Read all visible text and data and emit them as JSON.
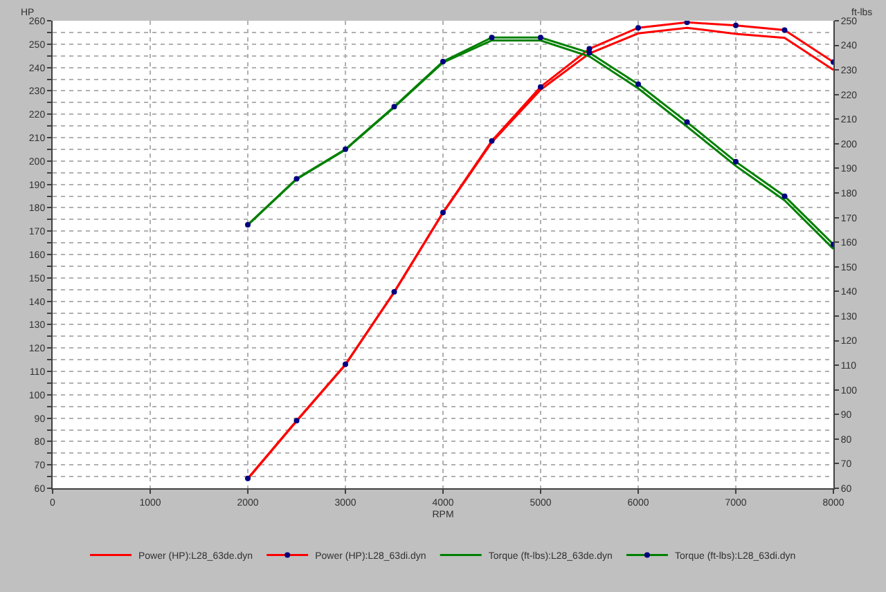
{
  "chart_data": {
    "type": "line",
    "xlabel": "RPM",
    "ylabel": "HP",
    "y2label": "ft-lbs",
    "x": [
      2000,
      2500,
      3000,
      3500,
      4000,
      4500,
      5000,
      5500,
      6000,
      6500,
      7000,
      7500,
      8000
    ],
    "xlim": [
      0,
      8000
    ],
    "xticks": [
      0,
      1000,
      2000,
      3000,
      4000,
      5000,
      6000,
      7000,
      8000
    ],
    "ylim": [
      60,
      260
    ],
    "yticks": [
      60,
      {
        "value": 65,
        "label": null
      },
      70,
      {
        "value": 75,
        "label": null
      },
      80,
      {
        "value": 85,
        "label": null
      },
      90,
      {
        "value": 95,
        "label": null
      },
      100,
      {
        "value": 105,
        "label": null
      },
      110,
      {
        "value": 115,
        "label": null
      },
      120,
      {
        "value": 125,
        "label": null
      },
      130,
      {
        "value": 135,
        "label": null
      },
      140,
      {
        "value": 145,
        "label": null
      },
      150,
      {
        "value": 155,
        "label": null
      },
      160,
      {
        "value": 165,
        "label": null
      },
      170,
      {
        "value": 175,
        "label": null
      },
      180,
      {
        "value": 185,
        "label": null
      },
      190,
      {
        "value": 195,
        "label": null
      },
      200,
      {
        "value": 205,
        "label": null
      },
      210,
      {
        "value": 215,
        "label": null
      },
      220,
      {
        "value": 225,
        "label": null
      },
      230,
      {
        "value": 235,
        "label": null
      },
      240,
      {
        "value": 245,
        "label": null
      },
      250,
      {
        "value": 255,
        "label": null
      },
      260
    ],
    "y2lim": [
      60,
      250
    ],
    "y2ticks": [
      60,
      70,
      80,
      90,
      100,
      110,
      120,
      130,
      140,
      150,
      160,
      170,
      180,
      190,
      200,
      210,
      220,
      230,
      240,
      250
    ],
    "grid": true,
    "legend": "bottom",
    "line_style": "solid",
    "series": [
      {
        "name": "Power (HP):L28_63de.dyn",
        "color": "#ff0000",
        "marker": "none",
        "values": [
          64,
          88.7,
          112.8,
          143.8,
          177.8,
          208,
          230.5,
          246,
          254.6,
          257,
          254.4,
          252.7,
          239
        ]
      },
      {
        "name": "Power (HP):L28_63di.dyn",
        "color": "#ff0000",
        "marker": "circle",
        "values": [
          64.2,
          88.9,
          113,
          144,
          178,
          208.6,
          231.7,
          248,
          257,
          259.3,
          258,
          256,
          242.3
        ]
      },
      {
        "name": "Torque (ft-lbs):L28_63de.dyn",
        "color": "#008000",
        "marker": "none",
        "axis": "y2",
        "values": [
          167,
          185.6,
          197.6,
          214.8,
          233,
          242,
          242,
          235.5,
          222.5,
          207,
          191,
          177,
          157.3
        ]
      },
      {
        "name": "Torque (ft-lbs):L28_63di.dyn",
        "color": "#008000",
        "marker": "circle",
        "axis": "y2",
        "values": [
          167.1,
          185.8,
          197.8,
          215.1,
          233.4,
          243.2,
          243.2,
          237,
          224.2,
          208.8,
          192.7,
          178.7,
          159.1
        ]
      }
    ]
  }
}
